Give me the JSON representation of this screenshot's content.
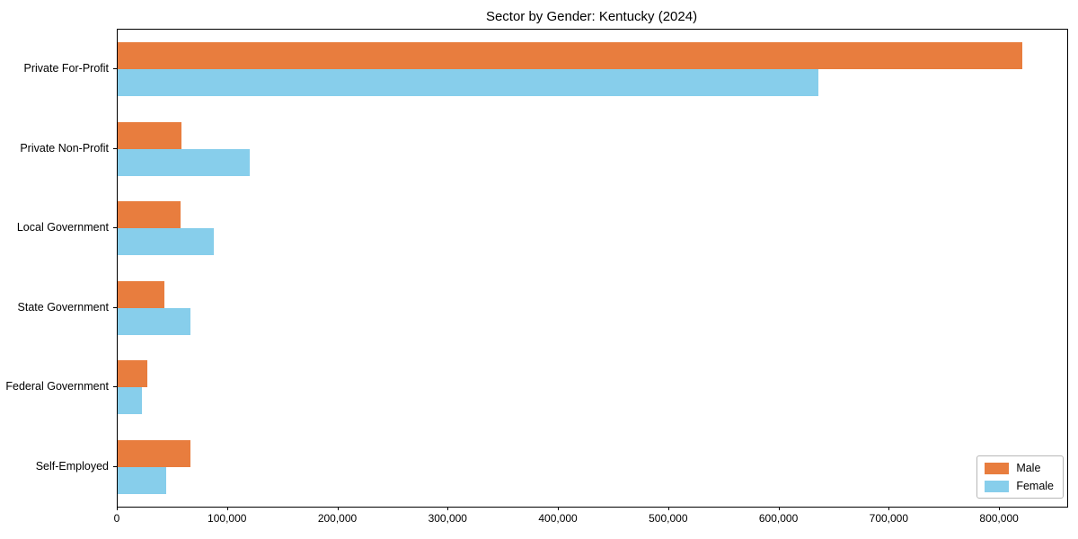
{
  "title": "Sector by Gender: Kentucky (2024)",
  "chart_data": {
    "type": "bar",
    "orientation": "horizontal",
    "title": "Sector by Gender: Kentucky (2024)",
    "xlabel": "",
    "ylabel": "",
    "categories": [
      "Private For-Profit",
      "Private Non-Profit",
      "Local Government",
      "State Government",
      "Federal Government",
      "Self-Employed"
    ],
    "series": [
      {
        "name": "Male",
        "color": "#e87d3e",
        "values": [
          820000,
          58000,
          57000,
          42000,
          27000,
          66000
        ]
      },
      {
        "name": "Female",
        "color": "#87ceeb",
        "values": [
          635000,
          120000,
          87000,
          66000,
          22000,
          44000
        ]
      }
    ],
    "xlim": [
      0,
      861000
    ],
    "x_ticks": [
      0,
      100000,
      200000,
      300000,
      400000,
      500000,
      600000,
      700000,
      800000
    ],
    "x_tick_labels": [
      "0",
      "100,000",
      "200,000",
      "300,000",
      "400,000",
      "500,000",
      "600,000",
      "700,000",
      "800,000"
    ],
    "grid": false,
    "legend_position": "lower right"
  }
}
